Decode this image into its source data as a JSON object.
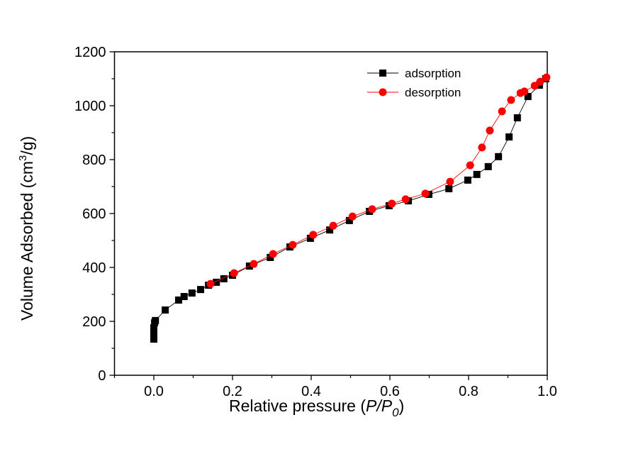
{
  "chart_data": {
    "type": "line",
    "title": "",
    "xlabel": "Relative pressure (",
    "xlabel_italic": "P/P",
    "xlabel_sub": "0",
    "xlabel_close": ")",
    "ylabel": "Volume Adsorbed (cm",
    "ylabel_sup": "3",
    "ylabel_tail": "/g)",
    "xlim": [
      -0.1,
      1.0
    ],
    "ylim": [
      0,
      1200
    ],
    "xticks": [
      "0.0",
      "0.2",
      "0.4",
      "0.6",
      "0.8",
      "1.0"
    ],
    "yticks": [
      "0",
      "200",
      "400",
      "600",
      "800",
      "1000",
      "1200"
    ],
    "grid": false,
    "legend_position": "top-right",
    "series": [
      {
        "name": "adsorption",
        "color": "#000000",
        "marker": "square",
        "x": [
          0.0,
          0.0,
          0.0,
          0.002,
          0.004,
          0.029,
          0.063,
          0.077,
          0.097,
          0.119,
          0.139,
          0.159,
          0.178,
          0.2,
          0.243,
          0.296,
          0.346,
          0.398,
          0.447,
          0.497,
          0.548,
          0.598,
          0.647,
          0.699,
          0.75,
          0.798,
          0.821,
          0.85,
          0.876,
          0.903,
          0.924,
          0.951,
          0.98,
          0.996
        ],
        "y": [
          134,
          150,
          176,
          195,
          203,
          242,
          279,
          292,
          305,
          318,
          334,
          345,
          358,
          371,
          405,
          437,
          476,
          508,
          539,
          574,
          608,
          629,
          647,
          671,
          692,
          724,
          745,
          774,
          811,
          884,
          955,
          1034,
          1076,
          1100
        ]
      },
      {
        "name": "desorption",
        "color": "#ff0000",
        "marker": "circle",
        "x": [
          0.998,
          0.982,
          0.968,
          0.942,
          0.932,
          0.908,
          0.885,
          0.854,
          0.834,
          0.804,
          0.753,
          0.69,
          0.64,
          0.605,
          0.555,
          0.505,
          0.456,
          0.405,
          0.353,
          0.303,
          0.254,
          0.204,
          0.144
        ],
        "y": [
          1105,
          1089,
          1074,
          1053,
          1047,
          1021,
          979,
          908,
          845,
          779,
          718,
          674,
          653,
          637,
          616,
          589,
          555,
          521,
          484,
          450,
          413,
          379,
          339
        ]
      }
    ]
  }
}
